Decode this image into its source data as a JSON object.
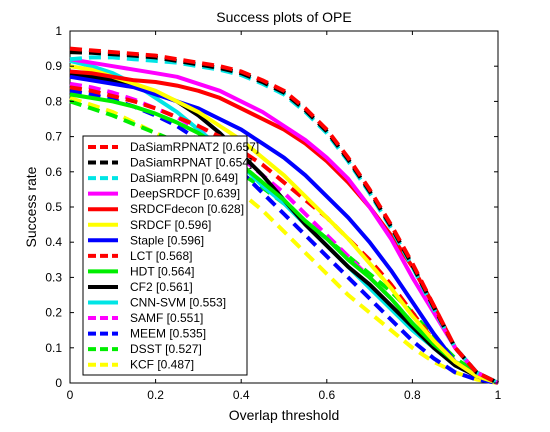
{
  "chart_data": {
    "type": "line",
    "title": "Success plots of OPE",
    "xlabel": "Overlap threshold",
    "ylabel": "Success rate",
    "xlim": [
      0,
      1
    ],
    "ylim": [
      0,
      1
    ],
    "x_ticks": [
      "0",
      "0.2",
      "0.4",
      "0.6",
      "0.8",
      "1"
    ],
    "y_ticks": [
      "0",
      "0.1",
      "0.2",
      "0.3",
      "0.4",
      "0.5",
      "0.6",
      "0.7",
      "0.8",
      "0.9",
      "1"
    ],
    "grid": false,
    "legend_position": "bottom-left",
    "x": [
      0,
      0.05,
      0.1,
      0.15,
      0.2,
      0.25,
      0.3,
      0.35,
      0.4,
      0.45,
      0.5,
      0.55,
      0.6,
      0.65,
      0.7,
      0.75,
      0.8,
      0.85,
      0.9,
      0.95,
      1.0
    ],
    "series": [
      {
        "name": "DaSiamRPNAT2 [0.657]",
        "color": "#ff0000",
        "dashed": true,
        "values": [
          0.95,
          0.945,
          0.94,
          0.935,
          0.93,
          0.92,
          0.91,
          0.9,
          0.885,
          0.86,
          0.83,
          0.78,
          0.72,
          0.64,
          0.55,
          0.45,
          0.34,
          0.22,
          0.1,
          0.03,
          0.0
        ]
      },
      {
        "name": "DaSiamRPNAT [0.654]",
        "color": "#000000",
        "dashed": true,
        "values": [
          0.94,
          0.938,
          0.934,
          0.93,
          0.925,
          0.915,
          0.905,
          0.895,
          0.88,
          0.855,
          0.825,
          0.775,
          0.715,
          0.635,
          0.545,
          0.445,
          0.335,
          0.215,
          0.1,
          0.03,
          0.0
        ]
      },
      {
        "name": "DaSiamRPN [0.649]",
        "color": "#00e5e5",
        "dashed": true,
        "values": [
          0.92,
          0.925,
          0.925,
          0.92,
          0.915,
          0.91,
          0.9,
          0.89,
          0.875,
          0.85,
          0.82,
          0.77,
          0.71,
          0.63,
          0.54,
          0.44,
          0.33,
          0.21,
          0.1,
          0.03,
          0.0
        ]
      },
      {
        "name": "DeepSRDCF [0.639]",
        "color": "#ff00ff",
        "dashed": false,
        "values": [
          0.92,
          0.91,
          0.9,
          0.89,
          0.88,
          0.87,
          0.85,
          0.83,
          0.8,
          0.77,
          0.73,
          0.69,
          0.64,
          0.58,
          0.5,
          0.41,
          0.3,
          0.2,
          0.1,
          0.03,
          0.0
        ]
      },
      {
        "name": "SRDCFdecon [0.628]",
        "color": "#ff0000",
        "dashed": false,
        "values": [
          0.885,
          0.88,
          0.87,
          0.86,
          0.855,
          0.845,
          0.83,
          0.81,
          0.78,
          0.75,
          0.72,
          0.68,
          0.63,
          0.57,
          0.5,
          0.42,
          0.33,
          0.22,
          0.1,
          0.03,
          0.0
        ]
      },
      {
        "name": "SRDCF [0.596]",
        "color": "#ffff00",
        "dashed": false,
        "values": [
          0.9,
          0.89,
          0.87,
          0.85,
          0.83,
          0.8,
          0.77,
          0.73,
          0.69,
          0.64,
          0.59,
          0.53,
          0.47,
          0.41,
          0.34,
          0.27,
          0.19,
          0.12,
          0.06,
          0.02,
          0.0
        ]
      },
      {
        "name": "Staple [0.596]",
        "color": "#0000ff",
        "dashed": false,
        "values": [
          0.87,
          0.86,
          0.85,
          0.84,
          0.82,
          0.8,
          0.78,
          0.75,
          0.72,
          0.68,
          0.64,
          0.59,
          0.53,
          0.47,
          0.4,
          0.32,
          0.23,
          0.14,
          0.06,
          0.02,
          0.0
        ]
      },
      {
        "name": "LCT [0.568]",
        "color": "#ff0000",
        "dashed": true,
        "values": [
          0.84,
          0.83,
          0.815,
          0.8,
          0.78,
          0.755,
          0.73,
          0.7,
          0.66,
          0.62,
          0.57,
          0.52,
          0.47,
          0.41,
          0.35,
          0.28,
          0.2,
          0.12,
          0.06,
          0.02,
          0.0
        ]
      },
      {
        "name": "HDT [0.564]",
        "color": "#00ee00",
        "dashed": false,
        "values": [
          0.82,
          0.81,
          0.8,
          0.785,
          0.765,
          0.74,
          0.71,
          0.67,
          0.62,
          0.57,
          0.52,
          0.46,
          0.41,
          0.35,
          0.3,
          0.24,
          0.17,
          0.11,
          0.06,
          0.03,
          0.0
        ]
      },
      {
        "name": "CF2 [0.561]",
        "color": "#000000",
        "dashed": false,
        "values": [
          0.88,
          0.87,
          0.86,
          0.845,
          0.825,
          0.8,
          0.76,
          0.71,
          0.65,
          0.59,
          0.52,
          0.45,
          0.39,
          0.33,
          0.28,
          0.22,
          0.16,
          0.1,
          0.05,
          0.02,
          0.0
        ]
      },
      {
        "name": "CNN-SVM [0.553]",
        "color": "#00e5e5",
        "dashed": false,
        "values": [
          0.915,
          0.9,
          0.88,
          0.85,
          0.81,
          0.77,
          0.72,
          0.67,
          0.62,
          0.56,
          0.51,
          0.45,
          0.39,
          0.33,
          0.27,
          0.21,
          0.15,
          0.1,
          0.05,
          0.02,
          0.0
        ]
      },
      {
        "name": "SAMF [0.551]",
        "color": "#ff00ff",
        "dashed": true,
        "values": [
          0.85,
          0.84,
          0.825,
          0.805,
          0.78,
          0.755,
          0.72,
          0.68,
          0.64,
          0.59,
          0.54,
          0.48,
          0.42,
          0.36,
          0.3,
          0.24,
          0.17,
          0.1,
          0.05,
          0.02,
          0.0
        ]
      },
      {
        "name": "MEEM [0.535]",
        "color": "#0000ff",
        "dashed": true,
        "values": [
          0.83,
          0.82,
          0.805,
          0.785,
          0.76,
          0.73,
          0.69,
          0.65,
          0.6,
          0.54,
          0.48,
          0.42,
          0.36,
          0.3,
          0.24,
          0.18,
          0.12,
          0.07,
          0.03,
          0.01,
          0.0
        ]
      },
      {
        "name": "DSST [0.527]",
        "color": "#00ee00",
        "dashed": true,
        "values": [
          0.8,
          0.78,
          0.76,
          0.735,
          0.71,
          0.685,
          0.66,
          0.63,
          0.595,
          0.555,
          0.51,
          0.46,
          0.41,
          0.36,
          0.31,
          0.26,
          0.2,
          0.13,
          0.07,
          0.03,
          0.0
        ]
      },
      {
        "name": "KCF [0.487]",
        "color": "#ffff00",
        "dashed": true,
        "values": [
          0.81,
          0.79,
          0.77,
          0.74,
          0.71,
          0.68,
          0.64,
          0.59,
          0.54,
          0.49,
          0.43,
          0.37,
          0.31,
          0.25,
          0.2,
          0.15,
          0.1,
          0.06,
          0.03,
          0.01,
          0.0
        ]
      }
    ]
  }
}
